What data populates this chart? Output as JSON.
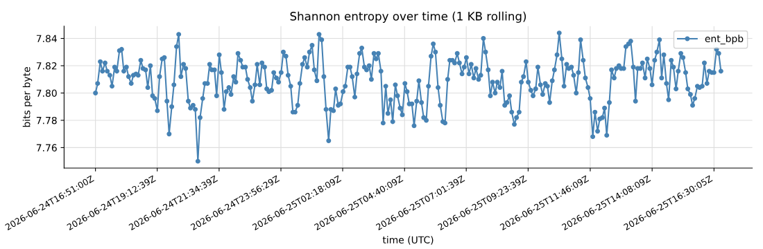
{
  "chart_data": {
    "type": "line",
    "title": "Shannon entropy over time (1 KB rolling)",
    "xlabel": "time (UTC)",
    "ylabel": "bits per byte",
    "x": [
      "2026-06-24T16:51",
      "2026-06-24T16:56",
      "2026-06-24T17:02",
      "2026-06-24T17:07",
      "2026-06-24T17:13",
      "2026-06-24T17:18",
      "2026-06-24T17:24",
      "2026-06-24T17:29",
      "2026-06-24T17:35",
      "2026-06-24T17:40",
      "2026-06-24T17:46",
      "2026-06-24T17:51",
      "2026-06-24T17:56",
      "2026-06-24T18:02",
      "2026-06-24T18:07",
      "2026-06-24T18:13",
      "2026-06-24T18:18",
      "2026-06-24T18:24",
      "2026-06-24T18:29",
      "2026-06-24T18:35",
      "2026-06-24T18:40",
      "2026-06-24T18:46",
      "2026-06-24T18:51",
      "2026-06-24T18:57",
      "2026-06-24T19:02",
      "2026-06-24T19:07",
      "2026-06-24T19:13",
      "2026-06-24T19:18",
      "2026-06-24T19:24",
      "2026-06-24T19:29",
      "2026-06-24T19:35",
      "2026-06-24T19:40",
      "2026-06-24T19:46",
      "2026-06-24T19:51",
      "2026-06-24T19:57",
      "2026-06-24T20:02",
      "2026-06-24T20:07",
      "2026-06-24T20:13",
      "2026-06-24T20:18",
      "2026-06-24T20:24",
      "2026-06-24T20:29",
      "2026-06-24T20:35",
      "2026-06-24T20:40",
      "2026-06-24T20:46",
      "2026-06-24T20:51",
      "2026-06-24T20:57",
      "2026-06-24T21:02",
      "2026-06-24T21:08",
      "2026-06-24T21:13",
      "2026-06-24T21:18",
      "2026-06-24T21:24",
      "2026-06-24T21:29",
      "2026-06-24T21:35",
      "2026-06-24T21:40",
      "2026-06-24T21:46",
      "2026-06-24T21:51",
      "2026-06-24T21:57",
      "2026-06-24T22:02",
      "2026-06-24T22:08",
      "2026-06-24T22:13",
      "2026-06-24T22:18",
      "2026-06-24T22:24",
      "2026-06-24T22:29",
      "2026-06-24T22:35",
      "2026-06-24T22:40",
      "2026-06-24T22:46",
      "2026-06-24T22:51",
      "2026-06-24T22:57",
      "2026-06-24T23:02",
      "2026-06-24T23:08",
      "2026-06-24T23:13",
      "2026-06-24T23:19",
      "2026-06-24T23:24",
      "2026-06-24T23:29",
      "2026-06-24T23:35",
      "2026-06-24T23:40",
      "2026-06-24T23:46",
      "2026-06-24T23:51",
      "2026-06-24T23:57",
      "2026-06-25T00:02",
      "2026-06-25T00:08",
      "2026-06-25T00:13",
      "2026-06-25T00:19",
      "2026-06-25T00:24",
      "2026-06-25T00:29",
      "2026-06-25T00:35",
      "2026-06-25T00:40",
      "2026-06-25T00:46",
      "2026-06-25T00:51",
      "2026-06-25T00:57",
      "2026-06-25T01:02",
      "2026-06-25T01:08",
      "2026-06-25T01:13",
      "2026-06-25T01:19",
      "2026-06-25T01:24",
      "2026-06-25T01:30",
      "2026-06-25T01:35",
      "2026-06-25T01:40",
      "2026-06-25T01:46",
      "2026-06-25T01:51",
      "2026-06-25T01:57",
      "2026-06-25T02:02",
      "2026-06-25T02:08",
      "2026-06-25T02:13",
      "2026-06-25T02:19",
      "2026-06-25T02:24",
      "2026-06-25T02:30",
      "2026-06-25T02:35",
      "2026-06-25T02:40",
      "2026-06-25T02:46",
      "2026-06-25T02:51",
      "2026-06-25T02:57",
      "2026-06-25T03:02",
      "2026-06-25T03:08",
      "2026-06-25T03:13",
      "2026-06-25T03:19",
      "2026-06-25T03:24",
      "2026-06-25T03:30",
      "2026-06-25T03:35",
      "2026-06-25T03:40",
      "2026-06-25T03:46",
      "2026-06-25T03:51",
      "2026-06-25T03:57",
      "2026-06-25T04:02",
      "2026-06-25T04:08",
      "2026-06-25T04:13",
      "2026-06-25T04:19",
      "2026-06-25T04:24",
      "2026-06-25T04:30",
      "2026-06-25T04:35",
      "2026-06-25T04:41",
      "2026-06-25T04:46",
      "2026-06-25T04:51",
      "2026-06-25T04:57",
      "2026-06-25T05:02",
      "2026-06-25T05:08",
      "2026-06-25T05:13",
      "2026-06-25T05:19",
      "2026-06-25T05:24",
      "2026-06-25T05:30",
      "2026-06-25T05:35",
      "2026-06-25T05:41",
      "2026-06-25T05:46",
      "2026-06-25T05:51",
      "2026-06-25T05:57",
      "2026-06-25T06:02",
      "2026-06-25T06:08",
      "2026-06-25T06:13",
      "2026-06-25T06:19",
      "2026-06-25T06:24",
      "2026-06-25T06:30",
      "2026-06-25T06:35",
      "2026-06-25T06:41",
      "2026-06-25T06:46",
      "2026-06-25T06:52",
      "2026-06-25T06:57",
      "2026-06-25T07:02",
      "2026-06-25T07:08",
      "2026-06-25T07:13",
      "2026-06-25T07:19",
      "2026-06-25T07:24",
      "2026-06-25T07:30",
      "2026-06-25T07:35",
      "2026-06-25T07:41",
      "2026-06-25T07:46",
      "2026-06-25T07:52",
      "2026-06-25T07:57",
      "2026-06-25T08:02",
      "2026-06-25T08:08",
      "2026-06-25T08:13",
      "2026-06-25T08:19",
      "2026-06-25T08:24",
      "2026-06-25T08:30",
      "2026-06-25T08:35",
      "2026-06-25T08:41",
      "2026-06-25T08:46",
      "2026-06-25T08:52",
      "2026-06-25T08:57",
      "2026-06-25T09:03",
      "2026-06-25T09:08",
      "2026-06-25T09:13",
      "2026-06-25T09:19",
      "2026-06-25T09:24",
      "2026-06-25T09:30",
      "2026-06-25T09:35",
      "2026-06-25T09:41",
      "2026-06-25T09:46",
      "2026-06-25T09:52",
      "2026-06-25T09:57",
      "2026-06-25T10:03",
      "2026-06-25T10:08",
      "2026-06-25T10:13",
      "2026-06-25T10:19",
      "2026-06-25T10:24",
      "2026-06-25T10:30",
      "2026-06-25T10:35",
      "2026-06-25T10:41",
      "2026-06-25T10:46",
      "2026-06-25T10:52",
      "2026-06-25T10:57",
      "2026-06-25T11:03",
      "2026-06-25T11:08",
      "2026-06-25T11:14",
      "2026-06-25T11:19",
      "2026-06-25T11:24",
      "2026-06-25T11:30",
      "2026-06-25T11:35",
      "2026-06-25T11:41",
      "2026-06-25T11:46",
      "2026-06-25T11:52",
      "2026-06-25T11:57",
      "2026-06-25T12:03",
      "2026-06-25T12:08",
      "2026-06-25T12:14",
      "2026-06-25T12:19",
      "2026-06-25T12:24",
      "2026-06-25T12:30",
      "2026-06-25T12:35",
      "2026-06-25T12:41",
      "2026-06-25T12:46",
      "2026-06-25T12:52",
      "2026-06-25T12:57",
      "2026-06-25T13:03",
      "2026-06-25T13:08",
      "2026-06-25T13:14",
      "2026-06-25T13:19",
      "2026-06-25T13:25",
      "2026-06-25T13:30",
      "2026-06-25T13:35",
      "2026-06-25T13:41",
      "2026-06-25T13:46",
      "2026-06-25T13:52",
      "2026-06-25T13:57",
      "2026-06-25T14:03",
      "2026-06-25T14:08",
      "2026-06-25T14:14",
      "2026-06-25T14:19",
      "2026-06-25T14:25",
      "2026-06-25T14:30",
      "2026-06-25T14:35",
      "2026-06-25T14:41",
      "2026-06-25T14:46",
      "2026-06-25T14:52",
      "2026-06-25T14:57",
      "2026-06-25T15:03",
      "2026-06-25T15:08",
      "2026-06-25T15:14",
      "2026-06-25T15:19",
      "2026-06-25T15:25",
      "2026-06-25T15:30",
      "2026-06-25T15:36",
      "2026-06-25T15:41",
      "2026-06-25T15:46",
      "2026-06-25T15:52",
      "2026-06-25T15:57",
      "2026-06-25T16:03",
      "2026-06-25T16:08",
      "2026-06-25T16:14",
      "2026-06-25T16:19",
      "2026-06-25T16:25",
      "2026-06-25T16:30",
      "2026-06-25T16:36",
      "2026-06-25T16:41",
      "2026-06-25T16:46"
    ],
    "series": [
      {
        "name": "ent_bpb",
        "color": "#4682b4",
        "values": [
          7.8,
          7.807,
          7.823,
          7.816,
          7.822,
          7.816,
          7.813,
          7.805,
          7.819,
          7.816,
          7.831,
          7.832,
          7.816,
          7.819,
          7.812,
          7.807,
          7.813,
          7.814,
          7.813,
          7.824,
          7.818,
          7.817,
          7.804,
          7.82,
          7.798,
          7.796,
          7.787,
          7.812,
          7.825,
          7.826,
          7.794,
          7.77,
          7.79,
          7.806,
          7.834,
          7.843,
          7.812,
          7.821,
          7.818,
          7.794,
          7.789,
          7.791,
          7.788,
          7.75,
          7.782,
          7.796,
          7.807,
          7.807,
          7.821,
          7.817,
          7.817,
          7.798,
          7.828,
          7.815,
          7.788,
          7.801,
          7.804,
          7.799,
          7.812,
          7.808,
          7.829,
          7.824,
          7.819,
          7.819,
          7.81,
          7.804,
          7.794,
          7.806,
          7.821,
          7.806,
          7.822,
          7.819,
          7.803,
          7.801,
          7.802,
          7.815,
          7.811,
          7.808,
          7.815,
          7.83,
          7.827,
          7.813,
          7.805,
          7.786,
          7.786,
          7.791,
          7.807,
          7.821,
          7.826,
          7.819,
          7.83,
          7.835,
          7.817,
          7.809,
          7.843,
          7.839,
          7.812,
          7.788,
          7.765,
          7.788,
          7.787,
          7.803,
          7.791,
          7.792,
          7.801,
          7.805,
          7.819,
          7.819,
          7.812,
          7.797,
          7.814,
          7.829,
          7.833,
          7.819,
          7.817,
          7.82,
          7.81,
          7.829,
          7.825,
          7.829,
          7.816,
          7.778,
          7.805,
          7.785,
          7.795,
          7.779,
          7.806,
          7.798,
          7.789,
          7.784,
          7.807,
          7.801,
          7.792,
          7.792,
          7.776,
          7.794,
          7.809,
          7.793,
          7.782,
          7.78,
          7.805,
          7.827,
          7.836,
          7.83,
          7.804,
          7.791,
          7.779,
          7.778,
          7.81,
          7.824,
          7.824,
          7.822,
          7.829,
          7.822,
          7.814,
          7.819,
          7.826,
          7.814,
          7.821,
          7.811,
          7.818,
          7.81,
          7.813,
          7.84,
          7.83,
          7.817,
          7.798,
          7.808,
          7.8,
          7.808,
          7.804,
          7.816,
          7.791,
          7.793,
          7.798,
          7.786,
          7.777,
          7.782,
          7.786,
          7.808,
          7.812,
          7.823,
          7.808,
          7.802,
          7.798,
          7.803,
          7.819,
          7.806,
          7.799,
          7.807,
          7.805,
          7.793,
          7.809,
          7.817,
          7.828,
          7.844,
          7.825,
          7.805,
          7.821,
          7.818,
          7.819,
          7.813,
          7.8,
          7.815,
          7.839,
          7.824,
          7.811,
          7.804,
          7.796,
          7.768,
          7.786,
          7.772,
          7.781,
          7.782,
          7.789,
          7.769,
          7.793,
          7.817,
          7.811,
          7.818,
          7.82,
          7.818,
          7.818,
          7.834,
          7.836,
          7.838,
          7.819,
          7.794,
          7.818,
          7.818,
          7.822,
          7.811,
          7.825,
          7.818,
          7.806,
          7.824,
          7.83,
          7.839,
          7.811,
          7.828,
          7.807,
          7.795,
          7.824,
          7.819,
          7.803,
          7.816,
          7.829,
          7.826,
          7.815,
          7.803,
          7.799,
          7.791,
          7.796,
          7.805,
          7.804,
          7.805,
          7.822,
          7.807,
          7.816,
          7.815,
          7.815,
          7.832,
          7.829,
          7.816
        ]
      }
    ],
    "xlim": [
      "2026-06-24T15:39",
      "2026-06-25T17:58"
    ],
    "xticks": [
      {
        "value": "2026-06-24T16:51:00",
        "label": "2026-06-24T16:51:00Z"
      },
      {
        "value": "2026-06-24T19:12:39",
        "label": "2026-06-24T19:12:39Z"
      },
      {
        "value": "2026-06-24T21:34:39",
        "label": "2026-06-24T21:34:39Z"
      },
      {
        "value": "2026-06-24T23:56:29",
        "label": "2026-06-24T23:56:29Z"
      },
      {
        "value": "2026-06-25T02:18:09",
        "label": "2026-06-25T02:18:09Z"
      },
      {
        "value": "2026-06-25T04:40:09",
        "label": "2026-06-25T04:40:09Z"
      },
      {
        "value": "2026-06-25T07:01:39",
        "label": "2026-06-25T07:01:39Z"
      },
      {
        "value": "2026-06-25T09:23:39",
        "label": "2026-06-25T09:23:39Z"
      },
      {
        "value": "2026-06-25T11:46:09",
        "label": "2026-06-25T11:46:09Z"
      },
      {
        "value": "2026-06-25T14:08:09",
        "label": "2026-06-25T14:08:09Z"
      },
      {
        "value": "2026-06-25T16:30:05",
        "label": "2026-06-25T16:30:05Z"
      }
    ],
    "ylim": [
      7.745,
      7.849
    ],
    "yticks": [
      {
        "value": 7.76,
        "label": "7.76"
      },
      {
        "value": 7.78,
        "label": "7.78"
      },
      {
        "value": 7.8,
        "label": "7.80"
      },
      {
        "value": 7.82,
        "label": "7.82"
      },
      {
        "value": 7.84,
        "label": "7.84"
      }
    ],
    "grid": true,
    "legend": "top right",
    "marker": "circle",
    "line_style": "solid"
  }
}
